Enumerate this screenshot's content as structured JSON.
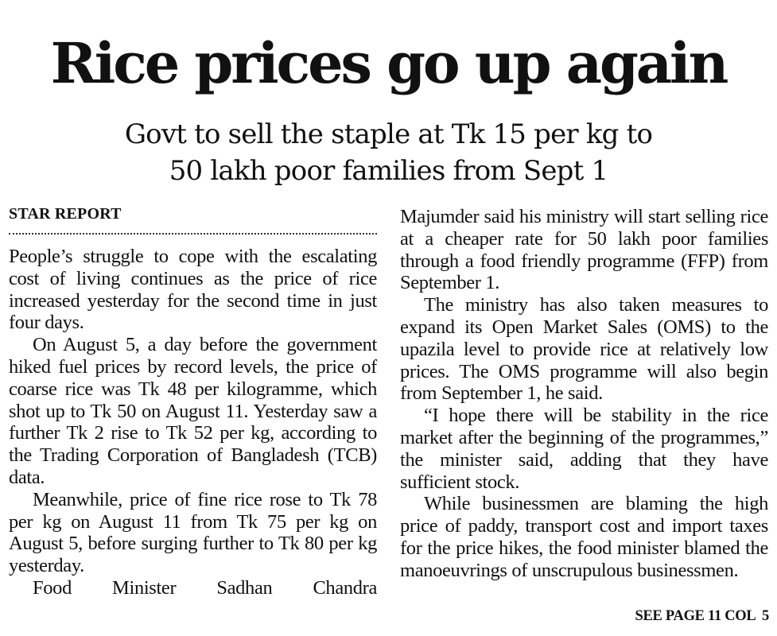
{
  "headline": "Rice prices go up again",
  "subheadline": {
    "line1": "Govt to sell the staple at Tk 15 per kg to",
    "line2": "50 lakh poor families from Sept 1"
  },
  "byline": "STAR REPORT",
  "left_column": {
    "paragraphs": [
      "People’s struggle to cope with the escalating cost of living continues as the price of rice increased yesterday for the second time in just four days.",
      "On August 5, a day before the government hiked fuel prices by record levels, the price of coarse rice was Tk 48 per kilogramme, which shot up to Tk 50 on August 11. Yesterday saw a further Tk 2 rise to Tk 52 per kg, according to the Trading Corporation of Bangladesh (TCB) data.",
      "Meanwhile, price of fine rice rose to Tk 78 per kg on August 11 from Tk 75 per kg on August 5, before surging further to Tk 80 per kg yesterday.",
      "Food Minister Sadhan Chandra"
    ]
  },
  "right_column": {
    "paragraphs": [
      "Majumder said his ministry will start selling rice at a cheaper rate for 50 lakh poor families through a food friendly programme (FFP) from September 1.",
      "The ministry has also taken measures to expand its Open Market Sales (OMS) to the upazila level to provide rice at relatively low prices. The OMS programme will also begin from September 1, he said.",
      "“I hope there will be stability in the rice market after the beginning of the programmes,” the minister said, adding that they have sufficient stock.",
      "While businessmen are blaming the high price of paddy, transport cost and import taxes for the price hikes, the food minister blamed the manoeuvrings of unscrupulous businessmen."
    ]
  },
  "jump_line": "SEE PAGE 11 COL  5"
}
